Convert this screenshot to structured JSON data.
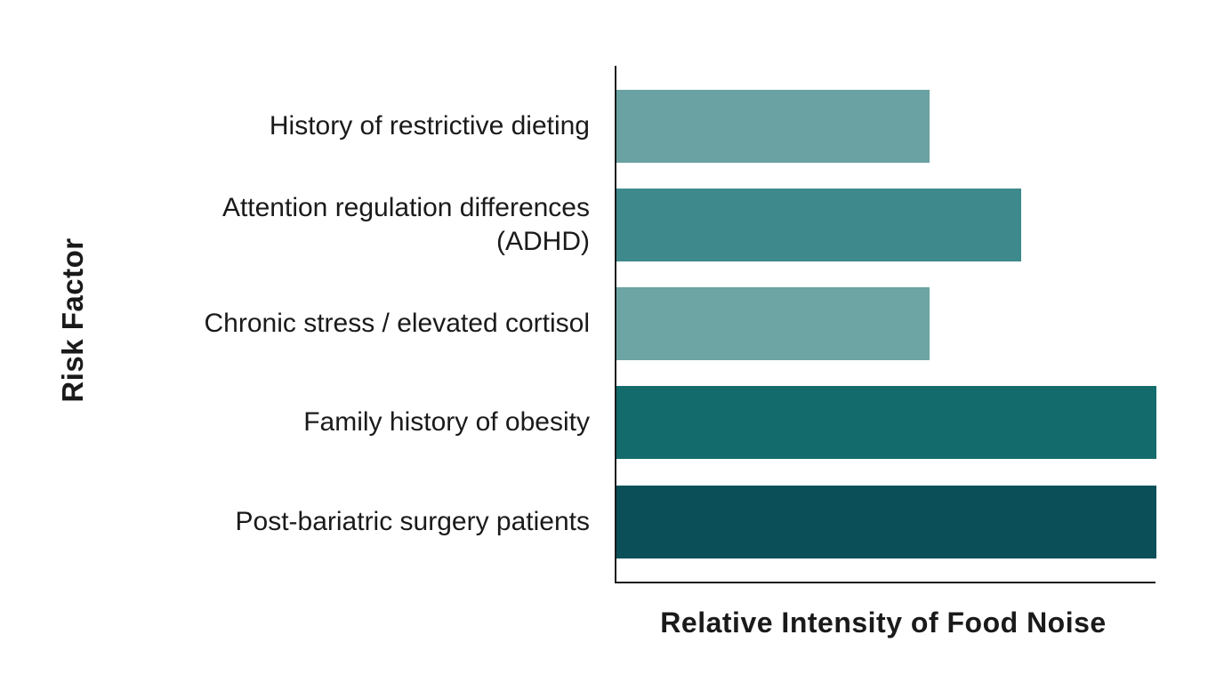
{
  "chart_data": {
    "type": "bar",
    "orientation": "horizontal",
    "title": "",
    "xlabel": "Relative Intensity of Food Noise",
    "ylabel": "Risk Factor",
    "categories": [
      "History of restrictive dieting",
      "Attention regulation differences\n(ADHD)",
      "Chronic stress / elevated cortisol",
      "Family history of obesity",
      "Post-bariatric surgery patients"
    ],
    "values": [
      0.58,
      0.75,
      0.58,
      1.0,
      1.0
    ],
    "bar_colors": [
      "#6AA1A2",
      "#3E898B",
      "#6CA5A3",
      "#136B6C",
      "#0B5058"
    ],
    "xlim": [
      0,
      1
    ],
    "x_tick_labels": [],
    "grid": false,
    "legend_position": "none"
  },
  "colors": {
    "background": "#ffffff",
    "axis": "#1a1a1a",
    "text": "#1a1a1a"
  }
}
